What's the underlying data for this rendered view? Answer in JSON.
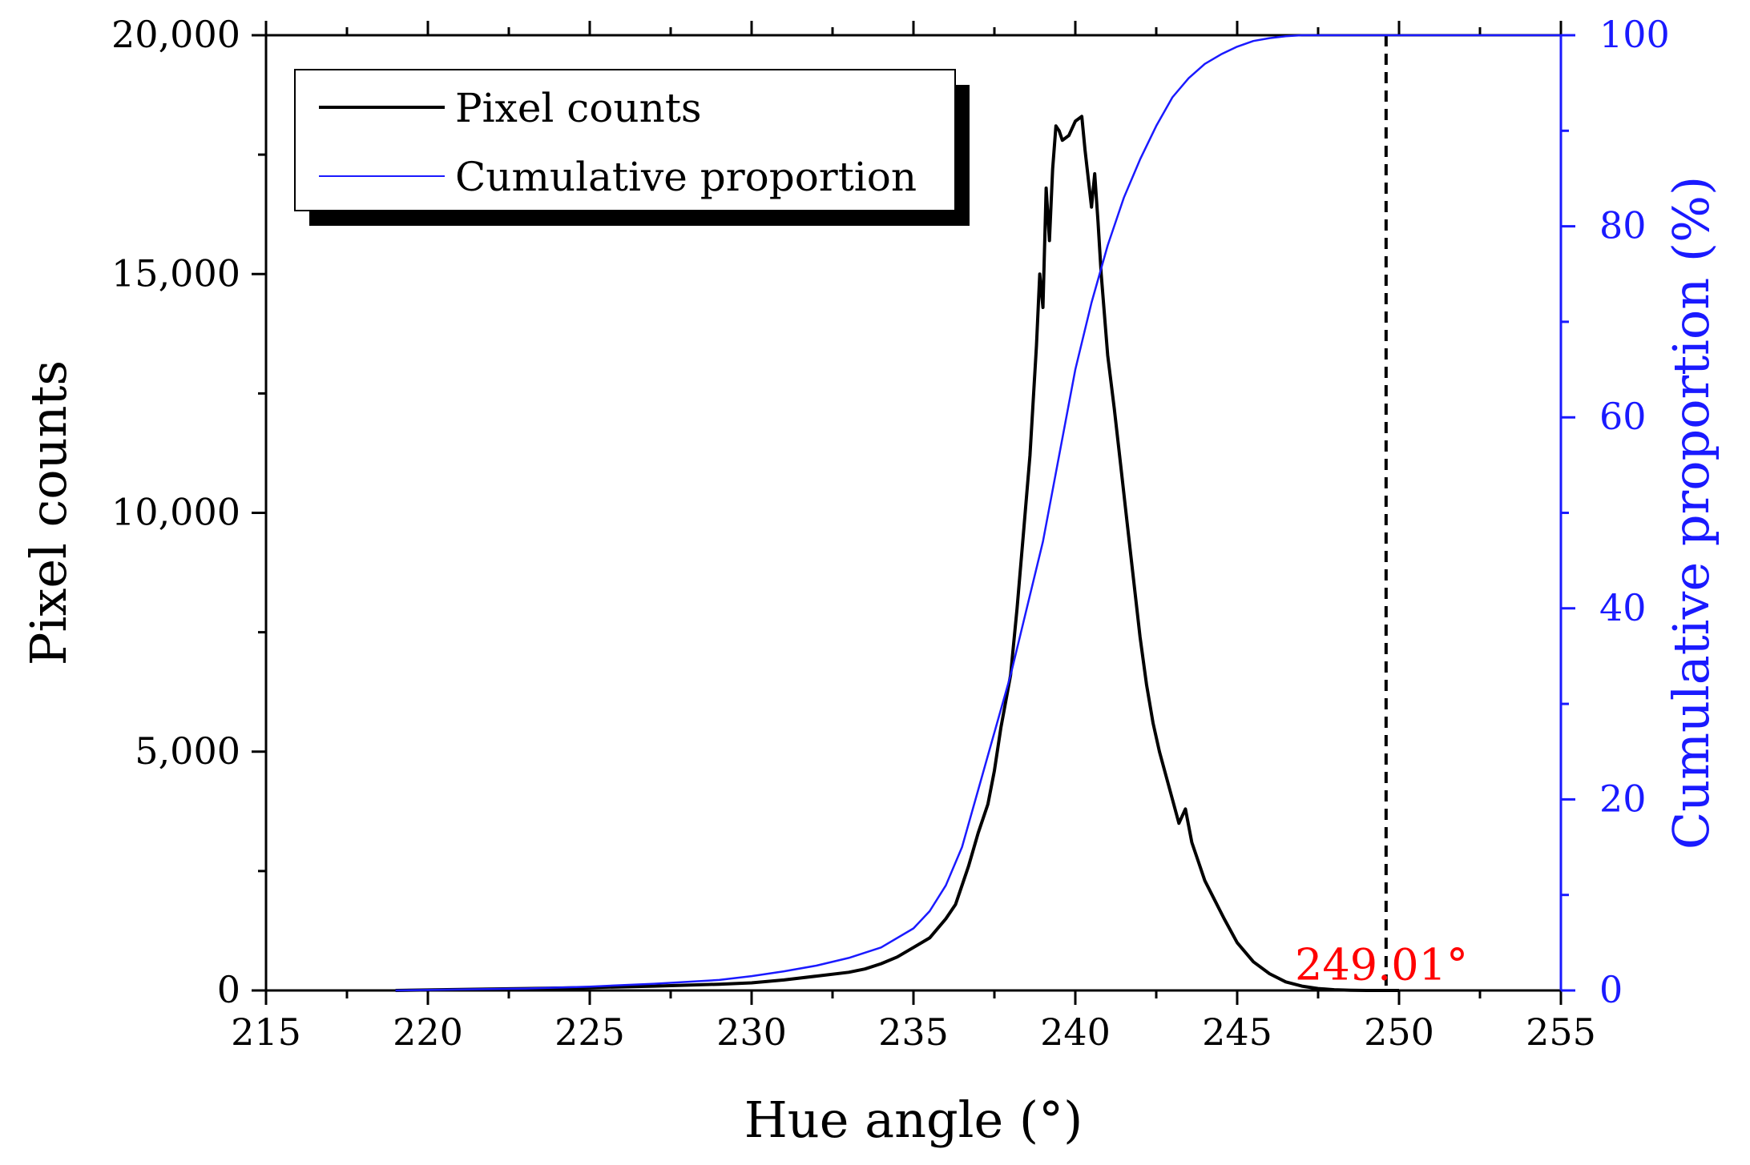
{
  "chart_data": {
    "type": "line",
    "title": "",
    "xlabel": "Hue angle (°)",
    "ylabel": "Pixel counts",
    "y2label": "Cumulative proportion (%)",
    "xlim": [
      215,
      255
    ],
    "ylim": [
      0,
      20000
    ],
    "y2lim": [
      0,
      100
    ],
    "x_ticks": [
      {
        "value": 215,
        "label": "215"
      },
      {
        "value": 220,
        "label": "220"
      },
      {
        "value": 225,
        "label": "225"
      },
      {
        "value": 230,
        "label": "230"
      },
      {
        "value": 235,
        "label": "235"
      },
      {
        "value": 240,
        "label": "240"
      },
      {
        "value": 245,
        "label": "245"
      },
      {
        "value": 250,
        "label": "250"
      },
      {
        "value": 255,
        "label": "255"
      }
    ],
    "y_ticks": [
      {
        "value": 0,
        "label": "0"
      },
      {
        "value": 5000,
        "label": "5,000"
      },
      {
        "value": 10000,
        "label": "10,000"
      },
      {
        "value": 15000,
        "label": "15,000"
      },
      {
        "value": 20000,
        "label": "20,000"
      }
    ],
    "y2_ticks": [
      {
        "value": 0,
        "label": "0"
      },
      {
        "value": 20,
        "label": "20"
      },
      {
        "value": 40,
        "label": "40"
      },
      {
        "value": 60,
        "label": "60"
      },
      {
        "value": 80,
        "label": "80"
      },
      {
        "value": 100,
        "label": "100"
      }
    ],
    "legend": {
      "position": "top-left",
      "entries": [
        {
          "label": "Pixel counts",
          "color": "#000000"
        },
        {
          "label": "Cumulative proportion",
          "color": "#1a1aff"
        }
      ]
    },
    "series": [
      {
        "name": "Pixel counts",
        "axis": "left",
        "color": "#000000",
        "x": [
          219,
          221,
          223,
          225,
          227,
          229,
          230,
          231,
          232,
          233,
          233.5,
          234,
          234.5,
          235,
          235.5,
          236,
          236.3,
          236.5,
          236.7,
          237,
          237.3,
          237.5,
          237.7,
          238,
          238.2,
          238.4,
          238.6,
          238.8,
          238.9,
          239.0,
          239.1,
          239.2,
          239.3,
          239.4,
          239.5,
          239.6,
          239.8,
          240.0,
          240.2,
          240.3,
          240.5,
          240.6,
          240.7,
          240.8,
          241.0,
          241.2,
          241.4,
          241.6,
          241.8,
          242.0,
          242.2,
          242.4,
          242.6,
          242.8,
          243.0,
          243.2,
          243.4,
          243.6,
          243.8,
          244.0,
          244.3,
          244.6,
          245.0,
          245.5,
          246.0,
          246.5,
          247.0,
          247.5,
          248.0,
          248.5,
          249.0,
          249.5,
          250
        ],
        "y": [
          0,
          20,
          40,
          60,
          90,
          130,
          160,
          220,
          300,
          380,
          450,
          560,
          700,
          900,
          1100,
          1500,
          1800,
          2200,
          2600,
          3300,
          3900,
          4600,
          5500,
          6600,
          8000,
          9600,
          11200,
          13500,
          15000,
          14300,
          16800,
          15700,
          17200,
          18100,
          18000,
          17800,
          17900,
          18200,
          18300,
          17600,
          16400,
          17100,
          16100,
          15000,
          13300,
          12200,
          11000,
          9800,
          8600,
          7400,
          6400,
          5600,
          5000,
          4500,
          4000,
          3500,
          3800,
          3100,
          2700,
          2300,
          1900,
          1500,
          1000,
          600,
          350,
          180,
          90,
          40,
          15,
          5,
          0,
          0,
          0
        ]
      },
      {
        "name": "Cumulative proportion",
        "axis": "right",
        "color": "#1a1aff",
        "x": [
          219,
          221,
          223,
          225,
          227,
          229,
          230,
          231,
          232,
          233,
          234,
          235,
          235.5,
          236,
          236.5,
          237,
          237.5,
          238,
          238.5,
          239,
          239.5,
          240,
          240.5,
          241,
          241.5,
          242,
          242.5,
          243,
          243.5,
          244,
          244.5,
          245,
          245.5,
          246,
          246.5,
          247,
          247.5,
          248,
          250,
          255
        ],
        "y": [
          0,
          0.1,
          0.2,
          0.4,
          0.7,
          1.1,
          1.5,
          2.0,
          2.6,
          3.4,
          4.5,
          6.5,
          8.3,
          11,
          15,
          21,
          27,
          33,
          40,
          47,
          56,
          65,
          72,
          78,
          83,
          87,
          90.5,
          93.5,
          95.5,
          97,
          98,
          98.8,
          99.4,
          99.7,
          99.9,
          100,
          100,
          100,
          100,
          100
        ]
      }
    ],
    "reference_line": {
      "x": 249.6,
      "style": "dashed",
      "color": "#000000"
    },
    "annotations": [
      {
        "text": "249.01°",
        "x": 249.01,
        "y": 1100,
        "color": "#ff0000"
      }
    ]
  }
}
